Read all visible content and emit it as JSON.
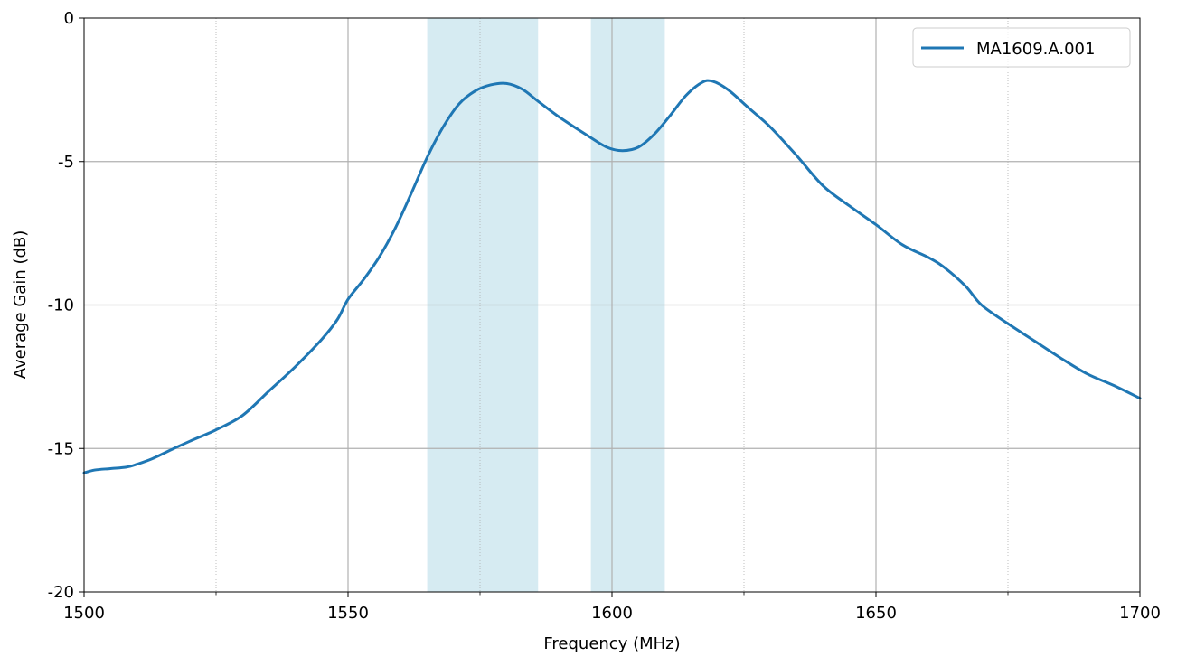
{
  "chart_data": {
    "type": "line",
    "title": "",
    "xlabel": "Frequency (MHz)",
    "ylabel": "Average Gain (dB)",
    "xlim": [
      1500,
      1700
    ],
    "ylim": [
      -20,
      0
    ],
    "x_major_ticks": [
      1500,
      1550,
      1600,
      1650,
      1700
    ],
    "x_tick_labels": [
      "1500",
      "1550",
      "1600",
      "1650",
      "1700"
    ],
    "x_minor_ticks": [
      1525,
      1575,
      1625,
      1675
    ],
    "y_major_ticks": [
      -20,
      -15,
      -10,
      -5,
      0
    ],
    "y_tick_labels": [
      "-20",
      "-15",
      "-10",
      "-5",
      "0"
    ],
    "grid": true,
    "legend_position": "top-right",
    "bands": [
      {
        "x0": 1565,
        "x1": 1586,
        "color": "#add8e6",
        "alpha": 0.5
      },
      {
        "x0": 1596,
        "x1": 1610,
        "color": "#add8e6",
        "alpha": 0.5
      }
    ],
    "series": [
      {
        "name": "MA1609.A.001",
        "color": "#1f77b4",
        "points": [
          [
            1500,
            -15.85
          ],
          [
            1502,
            -15.75
          ],
          [
            1505,
            -15.7
          ],
          [
            1508,
            -15.65
          ],
          [
            1510,
            -15.55
          ],
          [
            1513,
            -15.35
          ],
          [
            1517,
            -15.0
          ],
          [
            1520,
            -14.75
          ],
          [
            1525,
            -14.35
          ],
          [
            1530,
            -13.85
          ],
          [
            1535,
            -13.0
          ],
          [
            1540,
            -12.15
          ],
          [
            1545,
            -11.2
          ],
          [
            1548,
            -10.5
          ],
          [
            1550,
            -9.8
          ],
          [
            1553,
            -9.1
          ],
          [
            1556,
            -8.3
          ],
          [
            1559,
            -7.3
          ],
          [
            1562,
            -6.1
          ],
          [
            1565,
            -4.85
          ],
          [
            1568,
            -3.8
          ],
          [
            1571,
            -3.0
          ],
          [
            1574,
            -2.55
          ],
          [
            1577,
            -2.33
          ],
          [
            1580,
            -2.28
          ],
          [
            1583,
            -2.48
          ],
          [
            1586,
            -2.9
          ],
          [
            1590,
            -3.45
          ],
          [
            1595,
            -4.05
          ],
          [
            1599,
            -4.5
          ],
          [
            1602,
            -4.62
          ],
          [
            1605,
            -4.5
          ],
          [
            1608,
            -4.05
          ],
          [
            1611,
            -3.4
          ],
          [
            1614,
            -2.7
          ],
          [
            1617,
            -2.25
          ],
          [
            1619,
            -2.2
          ],
          [
            1622,
            -2.5
          ],
          [
            1626,
            -3.15
          ],
          [
            1630,
            -3.8
          ],
          [
            1635,
            -4.8
          ],
          [
            1640,
            -5.85
          ],
          [
            1645,
            -6.55
          ],
          [
            1650,
            -7.2
          ],
          [
            1655,
            -7.9
          ],
          [
            1660,
            -8.35
          ],
          [
            1663,
            -8.7
          ],
          [
            1667,
            -9.35
          ],
          [
            1670,
            -10.0
          ],
          [
            1675,
            -10.65
          ],
          [
            1680,
            -11.25
          ],
          [
            1685,
            -11.85
          ],
          [
            1690,
            -12.4
          ],
          [
            1695,
            -12.8
          ],
          [
            1700,
            -13.25
          ]
        ]
      }
    ]
  }
}
